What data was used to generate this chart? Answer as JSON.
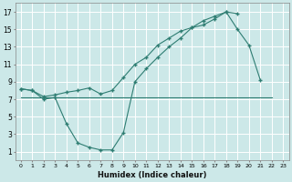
{
  "xlabel": "Humidex (Indice chaleur)",
  "background_color": "#cce8e8",
  "grid_color": "#ffffff",
  "line_color": "#2e7d72",
  "xlim": [
    -0.5,
    23.5
  ],
  "ylim": [
    0,
    18
  ],
  "xticks": [
    0,
    1,
    2,
    3,
    4,
    5,
    6,
    7,
    8,
    9,
    10,
    11,
    12,
    13,
    14,
    15,
    16,
    17,
    18,
    19,
    20,
    21,
    22,
    23
  ],
  "yticks": [
    1,
    3,
    5,
    7,
    9,
    11,
    13,
    15,
    17
  ],
  "line1_x": [
    0,
    1,
    2,
    3,
    4,
    5,
    6,
    7,
    8,
    9,
    10,
    11,
    12,
    13,
    14,
    15,
    16,
    17,
    18,
    19,
    20,
    21
  ],
  "line1_y": [
    8.2,
    8.0,
    7.0,
    7.2,
    4.2,
    2.0,
    1.5,
    1.2,
    1.2,
    3.2,
    9.0,
    10.5,
    11.8,
    13.0,
    14.0,
    15.2,
    15.5,
    16.2,
    17.0,
    15.0,
    13.2,
    9.2
  ],
  "line2_x": [
    0,
    1,
    2,
    3,
    4,
    5,
    6,
    7,
    8,
    9,
    10,
    11,
    12,
    13,
    14,
    15,
    16,
    17,
    18,
    19
  ],
  "line2_y": [
    8.2,
    8.0,
    7.3,
    7.5,
    7.8,
    8.0,
    8.3,
    7.6,
    8.0,
    9.5,
    11.0,
    11.8,
    13.2,
    14.0,
    14.8,
    15.2,
    16.0,
    16.5,
    17.0,
    16.8
  ],
  "line3_x": [
    0,
    22
  ],
  "line3_y": [
    7.2,
    7.2
  ]
}
